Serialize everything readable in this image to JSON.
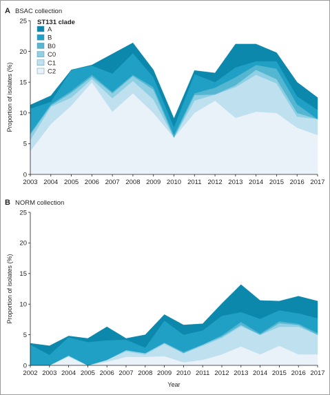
{
  "chart_data": [
    {
      "type": "area",
      "panel_label": "A",
      "title": "BSAC collection",
      "xlabel": "",
      "ylabel": "Proportion of isolates (%)",
      "ylim": [
        0,
        25
      ],
      "yticks": [
        "0",
        "5",
        "10",
        "15",
        "20",
        "25"
      ],
      "x": [
        "2003",
        "2004",
        "2005",
        "2006",
        "2007",
        "2008",
        "2009",
        "2010",
        "2011",
        "2012",
        "2013",
        "2014",
        "2015",
        "2016",
        "2017"
      ],
      "stacked": true,
      "legend": {
        "title": "ST131 clade",
        "placement": "top-left"
      },
      "series": [
        {
          "name": "C2",
          "color": "#e9f1f9",
          "values": [
            3.8,
            8.2,
            11.2,
            15.0,
            10.2,
            13.2,
            10.0,
            6.0,
            10.0,
            12.0,
            9.2,
            10.2,
            10.0,
            7.6,
            6.4
          ]
        },
        {
          "name": "C1",
          "color": "#bfe0ef",
          "values": [
            1.8,
            2.8,
            1.3,
            0.5,
            2.2,
            2.0,
            2.2,
            0.0,
            2.0,
            1.0,
            5.0,
            6.0,
            4.8,
            1.8,
            2.6
          ]
        },
        {
          "name": "C0",
          "color": "#8fcfe3",
          "values": [
            0.9,
            0.2,
            0.8,
            0.4,
            0.8,
            0.8,
            1.6,
            0.0,
            0.9,
            0.0,
            0.3,
            0.8,
            0.7,
            0.6,
            0.0
          ]
        },
        {
          "name": "B0",
          "color": "#55b6d1",
          "values": [
            0.2,
            0.2,
            0.3,
            0.3,
            0.2,
            0.2,
            0.4,
            0.4,
            0.3,
            1.1,
            1.3,
            0.8,
            1.7,
            1.4,
            0.0
          ]
        },
        {
          "name": "B",
          "color": "#1fa0c4",
          "values": [
            4.0,
            0.4,
            3.4,
            1.5,
            3.0,
            3.5,
            1.6,
            1.3,
            3.1,
            0.9,
            1.6,
            0.6,
            1.2,
            1.3,
            1.5
          ]
        },
        {
          "name": "A",
          "color": "#0c88ad",
          "values": [
            0.6,
            1.0,
            0.0,
            0.1,
            3.2,
            1.7,
            1.2,
            1.4,
            0.6,
            1.5,
            3.8,
            2.8,
            1.4,
            2.3,
            2.0
          ]
        }
      ]
    },
    {
      "type": "area",
      "panel_label": "B",
      "title": "NORM collection",
      "xlabel": "Year",
      "ylabel": "Proportion of isolates (%)",
      "ylim": [
        0,
        25
      ],
      "yticks": [
        "0",
        "5",
        "10",
        "15",
        "20",
        "25"
      ],
      "x": [
        "2002",
        "2003",
        "2004",
        "2005",
        "2006",
        "2007",
        "2008",
        "2009",
        "2010",
        "2011",
        "2012",
        "2013",
        "2014",
        "2015",
        "2016",
        "2017"
      ],
      "stacked": true,
      "series": [
        {
          "name": "C2",
          "color": "#e9f1f9",
          "values": [
            0.0,
            0.0,
            1.4,
            0.0,
            0.6,
            1.4,
            1.4,
            1.5,
            0.5,
            0.9,
            1.8,
            3.1,
            1.8,
            3.2,
            1.8,
            1.8
          ]
        },
        {
          "name": "C1",
          "color": "#bfe0ef",
          "values": [
            0.0,
            0.0,
            0.2,
            0.0,
            0.3,
            0.9,
            0.4,
            2.0,
            1.5,
            2.3,
            2.7,
            3.3,
            3.2,
            3.1,
            4.5,
            3.2
          ]
        },
        {
          "name": "C0",
          "color": "#8fcfe3",
          "values": [
            0.0,
            0.0,
            0.0,
            0.0,
            0.0,
            0.2,
            0.2,
            0.2,
            0.0,
            0.2,
            0.2,
            0.2,
            0.0,
            0.6,
            0.3,
            0.0
          ]
        },
        {
          "name": "B0",
          "color": "#55b6d1",
          "values": [
            0.0,
            0.0,
            0.0,
            0.0,
            0.0,
            0.0,
            0.0,
            0.0,
            0.2,
            0.0,
            0.2,
            0.5,
            0.2,
            0.3,
            0.2,
            0.3
          ]
        },
        {
          "name": "B",
          "color": "#1fa0c4",
          "values": [
            3.4,
            1.7,
            3.0,
            3.8,
            3.2,
            1.7,
            0.9,
            3.6,
            2.8,
            2.3,
            3.2,
            1.6,
            2.4,
            1.8,
            1.7,
            2.4
          ]
        },
        {
          "name": "A",
          "color": "#0c88ad",
          "values": [
            0.2,
            1.5,
            0.2,
            0.6,
            2.2,
            0.2,
            2.1,
            1.0,
            1.6,
            1.1,
            2.0,
            4.5,
            3.0,
            1.5,
            2.8,
            2.8
          ]
        }
      ]
    }
  ]
}
